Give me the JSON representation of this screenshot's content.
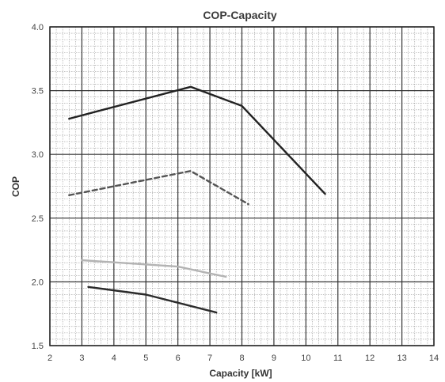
{
  "chart_data": {
    "type": "line",
    "title": "COP-Capacity",
    "xlabel": "Capacity [kW]",
    "ylabel": "COP",
    "xlim": [
      2,
      14
    ],
    "ylim": [
      1.5,
      4.0
    ],
    "x_ticks": [
      "2",
      "3",
      "4",
      "5",
      "6",
      "7",
      "8",
      "9",
      "10",
      "11",
      "12",
      "13",
      "14"
    ],
    "y_ticks": [
      "1.5",
      "2.0",
      "2.5",
      "3.0",
      "3.5",
      "4.0"
    ],
    "grid": true,
    "minor_grid": true,
    "legend": "none",
    "series": [
      {
        "color": "#222222",
        "dash": "solid",
        "points": [
          [
            2.6,
            3.28
          ],
          [
            6.4,
            3.53
          ],
          [
            8.0,
            3.38
          ],
          [
            10.6,
            2.69
          ]
        ]
      },
      {
        "color": "#555555",
        "dash": "dashed",
        "points": [
          [
            2.6,
            2.68
          ],
          [
            6.4,
            2.87
          ],
          [
            8.2,
            2.61
          ]
        ]
      },
      {
        "color": "#b3b3b3",
        "dash": "solid",
        "points": [
          [
            3.0,
            2.17
          ],
          [
            6.0,
            2.12
          ],
          [
            7.5,
            2.04
          ]
        ]
      },
      {
        "color": "#2b2b2b",
        "dash": "solid",
        "points": [
          [
            3.2,
            1.96
          ],
          [
            5.0,
            1.9
          ],
          [
            7.2,
            1.76
          ]
        ]
      }
    ]
  }
}
